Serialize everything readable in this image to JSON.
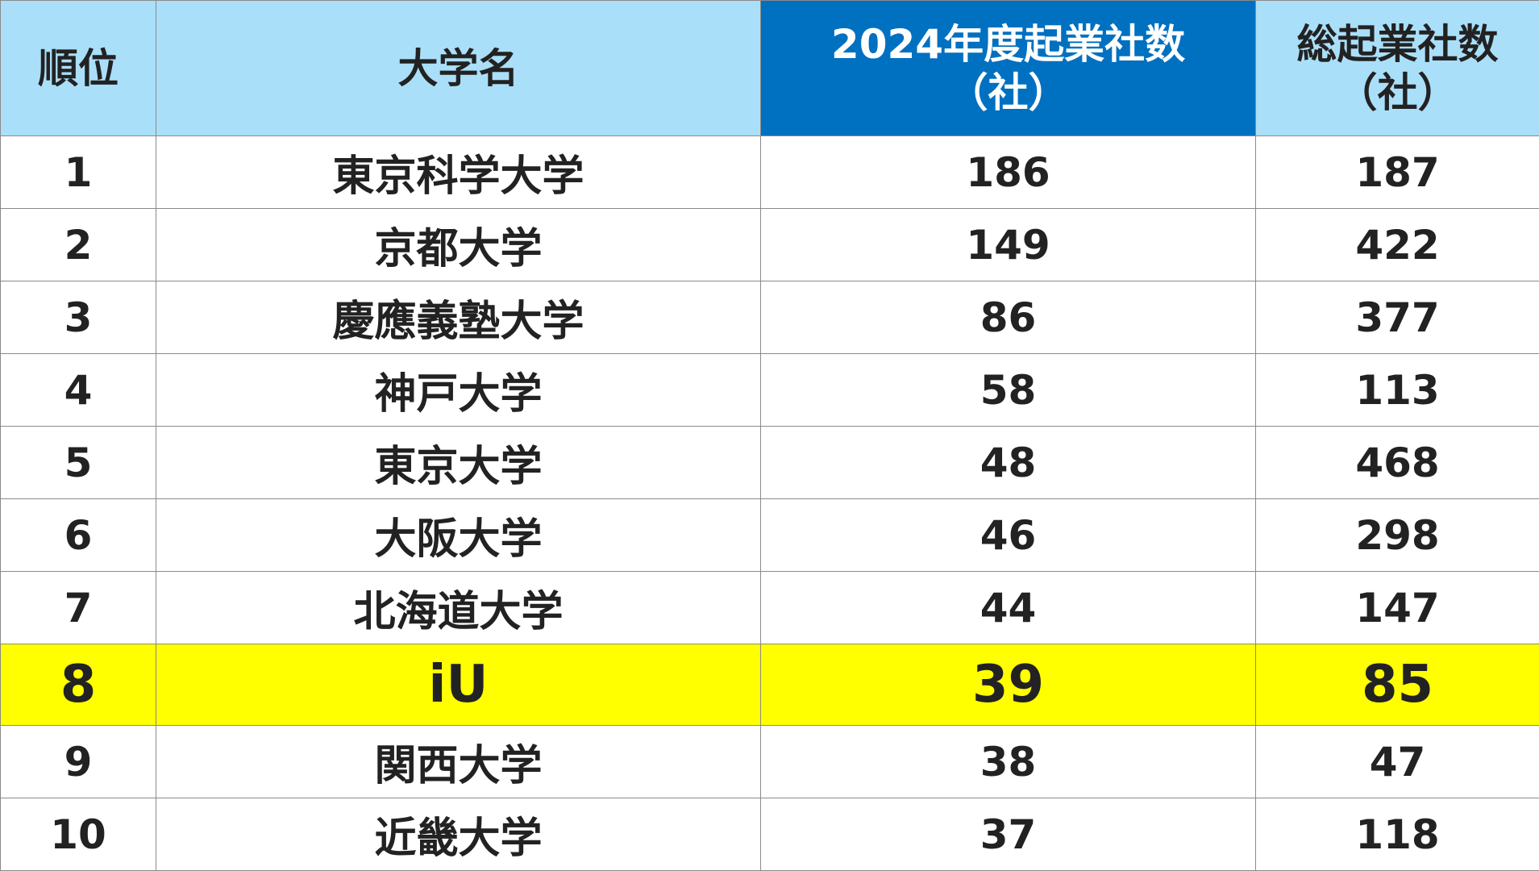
{
  "table": {
    "headers": {
      "rank": "順位",
      "university": "大学名",
      "startups_2024_line1": "2024年度起業社数",
      "startups_2024_line2": "（社）",
      "total_startups_line1": "総起業社数",
      "total_startups_line2": "（社）"
    },
    "rows": [
      {
        "rank": "1",
        "university": "東京科学大学",
        "startups_2024": "186",
        "total": "187"
      },
      {
        "rank": "2",
        "university": "京都大学",
        "startups_2024": "149",
        "total": "422"
      },
      {
        "rank": "3",
        "university": "慶應義塾大学",
        "startups_2024": "86",
        "total": "377"
      },
      {
        "rank": "4",
        "university": "神戸大学",
        "startups_2024": "58",
        "total": "113"
      },
      {
        "rank": "5",
        "university": "東京大学",
        "startups_2024": "48",
        "total": "468"
      },
      {
        "rank": "6",
        "university": "大阪大学",
        "startups_2024": "46",
        "total": "298"
      },
      {
        "rank": "7",
        "university": "北海道大学",
        "startups_2024": "44",
        "total": "147"
      },
      {
        "rank": "8",
        "university": "iU",
        "startups_2024": "39",
        "total": "85"
      },
      {
        "rank": "9",
        "university": "関西大学",
        "startups_2024": "38",
        "total": "47"
      },
      {
        "rank": "10",
        "university": "近畿大学",
        "startups_2024": "37",
        "total": "118"
      }
    ],
    "highlight_row_index": 7,
    "colors": {
      "header_bg": "#aadff9",
      "highlight_header_bg": "#0070c0",
      "highlight_row_bg": "#ffff00",
      "border": "#8a8a8a",
      "text": "#222222"
    }
  }
}
